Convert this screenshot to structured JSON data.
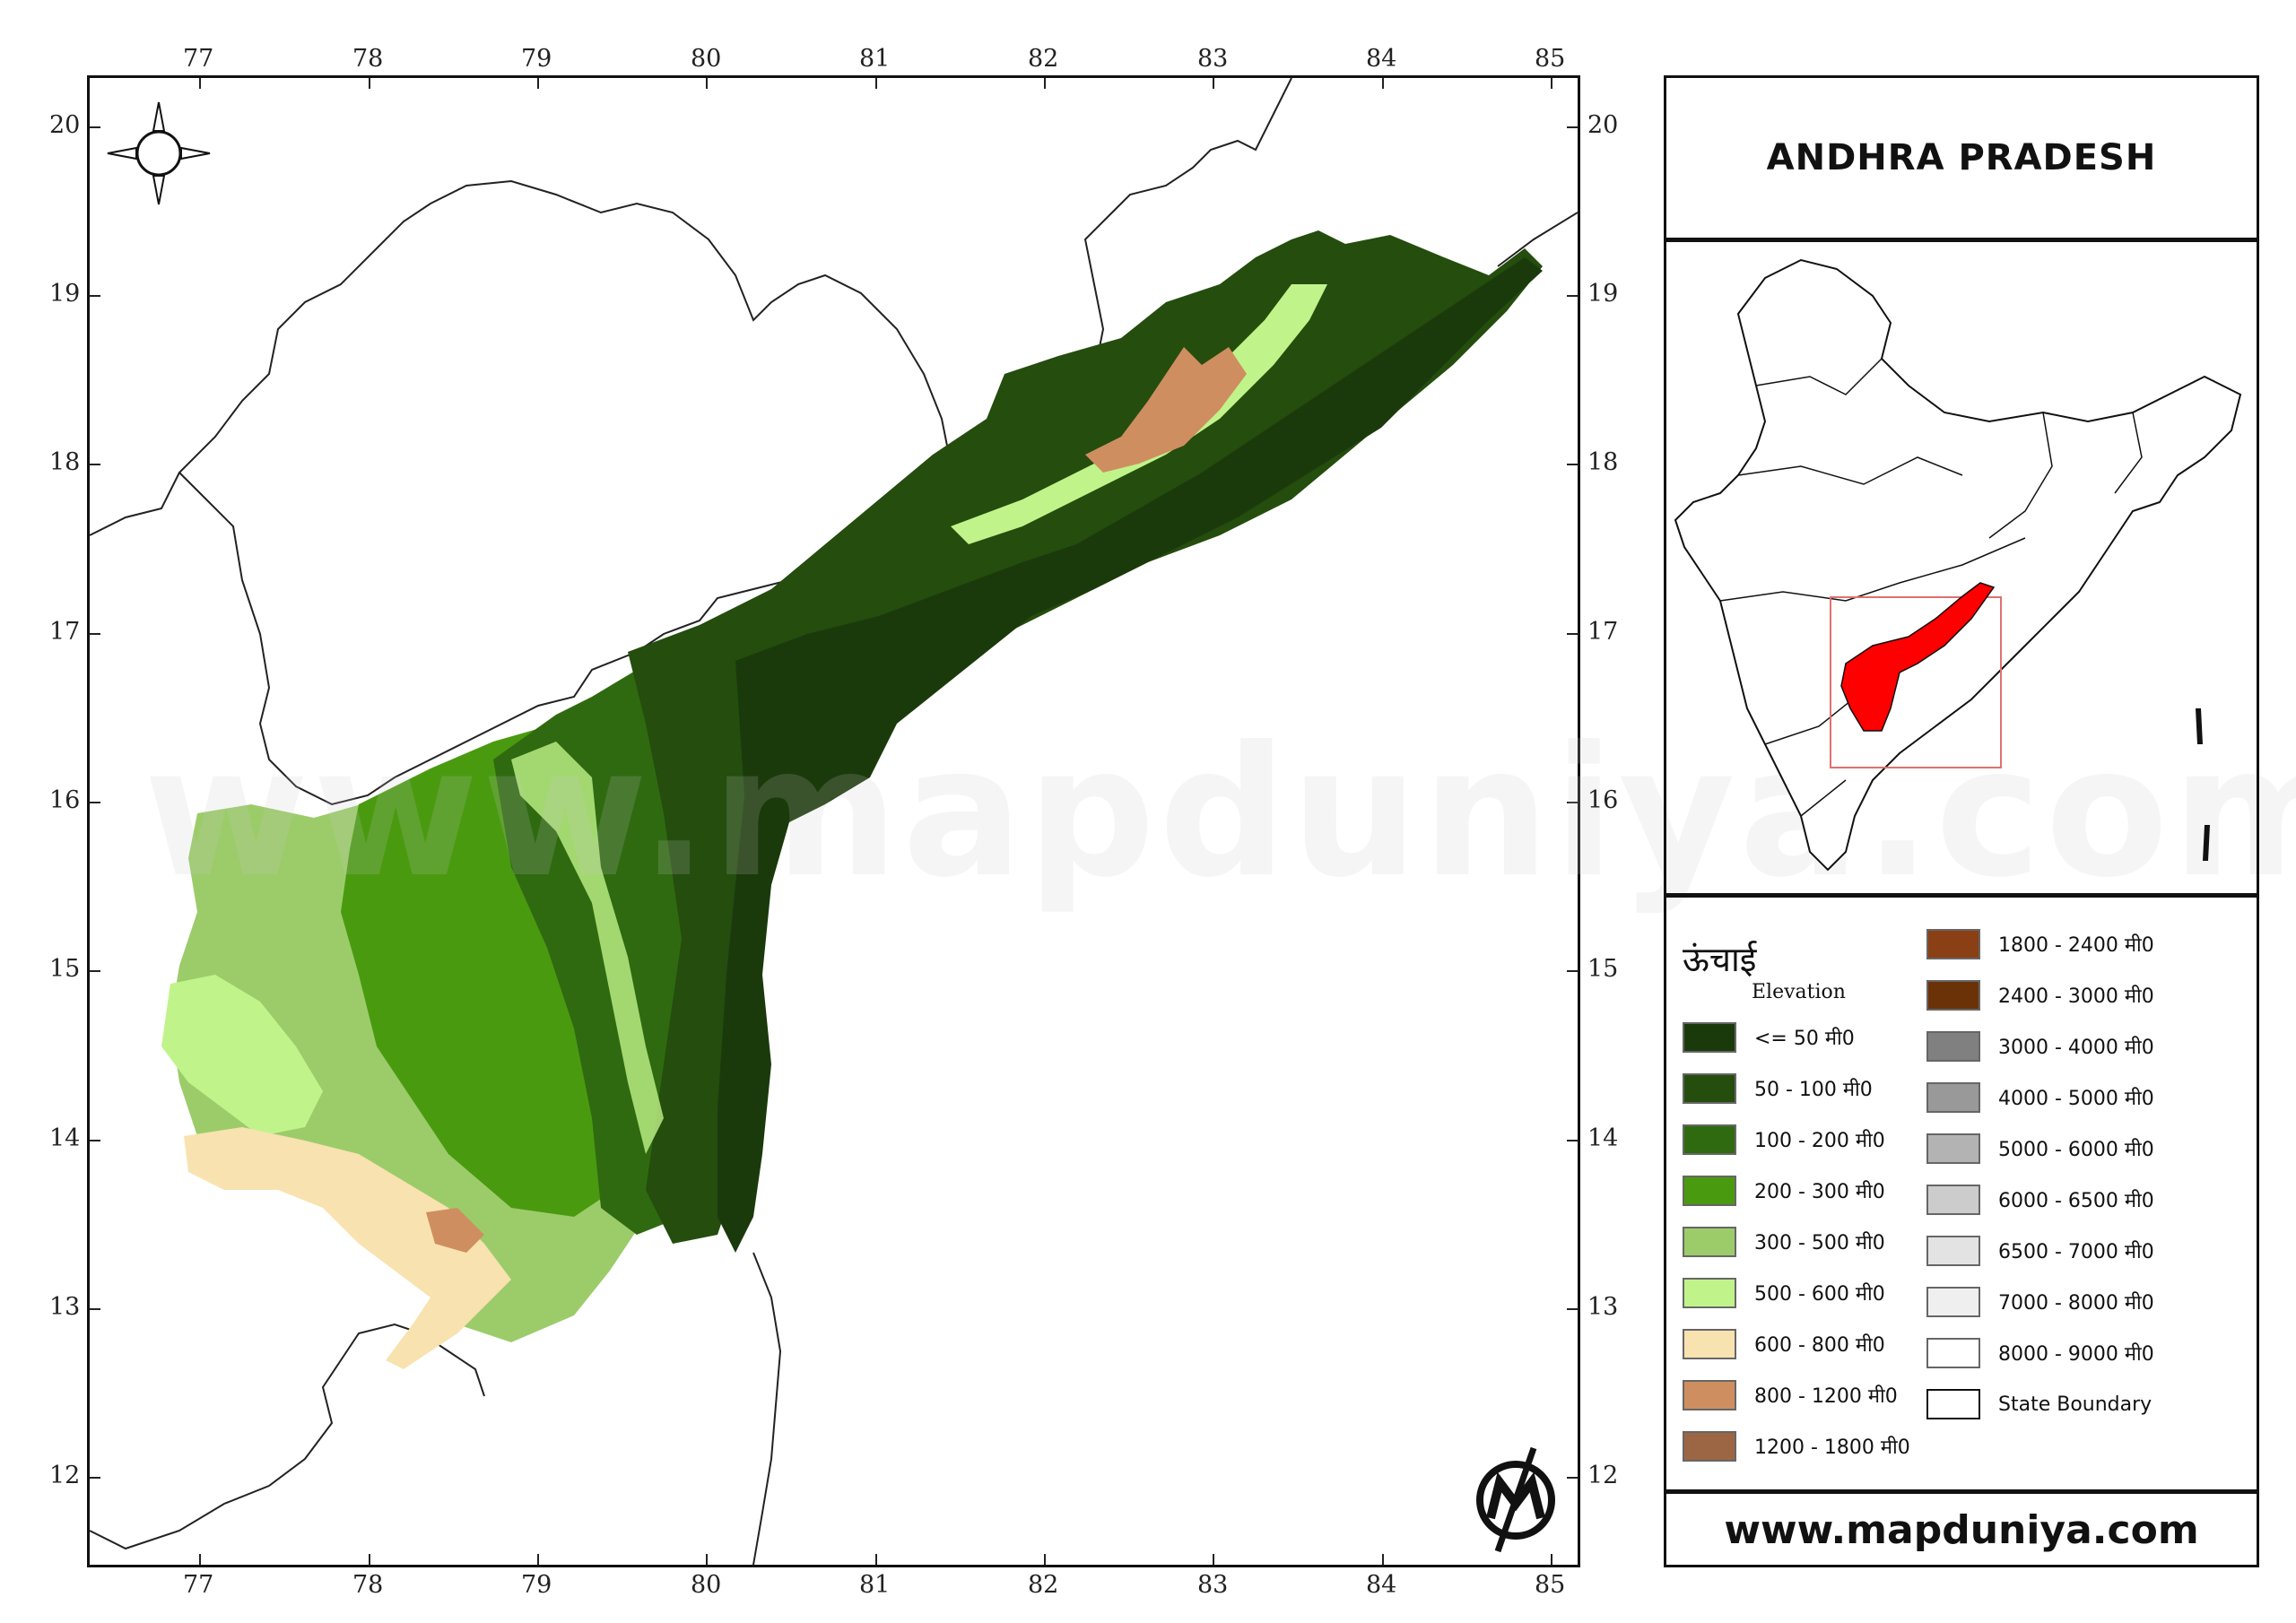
{
  "title": "ANDHRA PRADESH",
  "website": "www.mapduniya.com",
  "watermark": "www.mapduniya.com",
  "axes": {
    "longitude_ticks": [
      "77",
      "78",
      "79",
      "80",
      "81",
      "82",
      "83",
      "84",
      "85"
    ],
    "latitude_ticks": [
      "20",
      "19",
      "18",
      "17",
      "16",
      "15",
      "14",
      "13",
      "12"
    ]
  },
  "legend": {
    "heading": "ऊंचाई",
    "subheading": "Elevation",
    "items": [
      {
        "label": "<= 50 मी0",
        "color": "#1b3a0c"
      },
      {
        "label": "50 - 100 मी0",
        "color": "#244d0e"
      },
      {
        "label": "100 - 200 मी0",
        "color": "#2f6a10"
      },
      {
        "label": "200 - 300 मी0",
        "color": "#4a9a10"
      },
      {
        "label": "300 - 500 मी0",
        "color": "#9ccc6a"
      },
      {
        "label": "500 - 600 मी0",
        "color": "#c0f48a"
      },
      {
        "label": "600 - 800 मी0",
        "color": "#f8e2b0"
      },
      {
        "label": "800 - 1200 मी0",
        "color": "#cf8e60"
      },
      {
        "label": "1200 - 1800 मी0",
        "color": "#9c6644"
      },
      {
        "label": "1800 - 2400 मी0",
        "color": "#8b3f14"
      },
      {
        "label": "2400 - 3000 मी0",
        "color": "#6b3208"
      },
      {
        "label": "3000 - 4000 मी0",
        "color": "#808080"
      },
      {
        "label": "4000 - 5000 मी0",
        "color": "#999999"
      },
      {
        "label": "5000 - 6000 मी0",
        "color": "#b3b3b3"
      },
      {
        "label": "6000 - 6500 मी0",
        "color": "#cccccc"
      },
      {
        "label": "6500 - 7000 मी0",
        "color": "#e3e3e3"
      },
      {
        "label": "7000 - 8000 मी0",
        "color": "#efefef"
      },
      {
        "label": "8000 - 9000 मी0",
        "color": "#ffffff"
      },
      {
        "label": "State Boundary",
        "color": "#ffffff"
      }
    ]
  },
  "inset": {
    "highlight_color": "#ff0000"
  }
}
